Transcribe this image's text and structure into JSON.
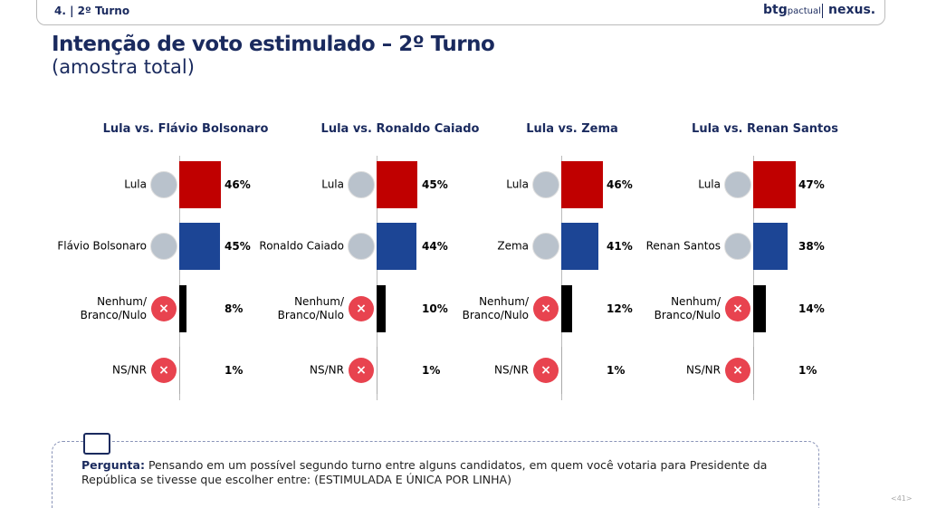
{
  "header": {
    "section": "4. | 2º Turno",
    "logo_left": "btg",
    "logo_left_sub": "pactual",
    "logo_right": "nexus."
  },
  "title": "Intenção de voto estimulado – 2º Turno",
  "subtitle": "(amostra total)",
  "chart_data": [
    {
      "type": "bar",
      "title": "Lula vs. Flávio Bolsonaro",
      "categories": [
        "Lula",
        "Flávio Bolsonaro",
        "Nenhum/ Branco/Nulo",
        "NS/NR"
      ],
      "values": [
        46,
        45,
        8,
        1
      ],
      "value_labels": [
        "46%",
        "45%",
        "8%",
        "1%"
      ],
      "colors": [
        "#c00000",
        "#1c4595",
        "#000000",
        "#aaaaaa"
      ]
    },
    {
      "type": "bar",
      "title": "Lula vs. Ronaldo Caiado",
      "categories": [
        "Lula",
        "Ronaldo Caiado",
        "Nenhum/ Branco/Nulo",
        "NS/NR"
      ],
      "values": [
        45,
        44,
        10,
        1
      ],
      "value_labels": [
        "45%",
        "44%",
        "10%",
        "1%"
      ],
      "colors": [
        "#c00000",
        "#1c4595",
        "#000000",
        "#aaaaaa"
      ]
    },
    {
      "type": "bar",
      "title": "Lula vs. Zema",
      "categories": [
        "Lula",
        "Zema",
        "Nenhum/ Branco/Nulo",
        "NS/NR"
      ],
      "values": [
        46,
        41,
        12,
        1
      ],
      "value_labels": [
        "46%",
        "41%",
        "12%",
        "1%"
      ],
      "colors": [
        "#c00000",
        "#1c4595",
        "#000000",
        "#aaaaaa"
      ]
    },
    {
      "type": "bar",
      "title": "Lula vs. Renan Santos",
      "categories": [
        "Lula",
        "Renan Santos",
        "Nenhum/ Branco/Nulo",
        "NS/NR"
      ],
      "values": [
        47,
        38,
        14,
        1
      ],
      "value_labels": [
        "47%",
        "38%",
        "14%",
        "1%"
      ],
      "colors": [
        "#c00000",
        "#1c4595",
        "#000000",
        "#aaaaaa"
      ]
    }
  ],
  "question": {
    "label": "Pergunta:",
    "text": "Pensando em um possível segundo turno entre alguns candidatos, em quem você votaria para Presidente da República se tivesse que escolher entre: (ESTIMULADA E ÚNICA POR LINHA)"
  },
  "page_number": "<41>"
}
